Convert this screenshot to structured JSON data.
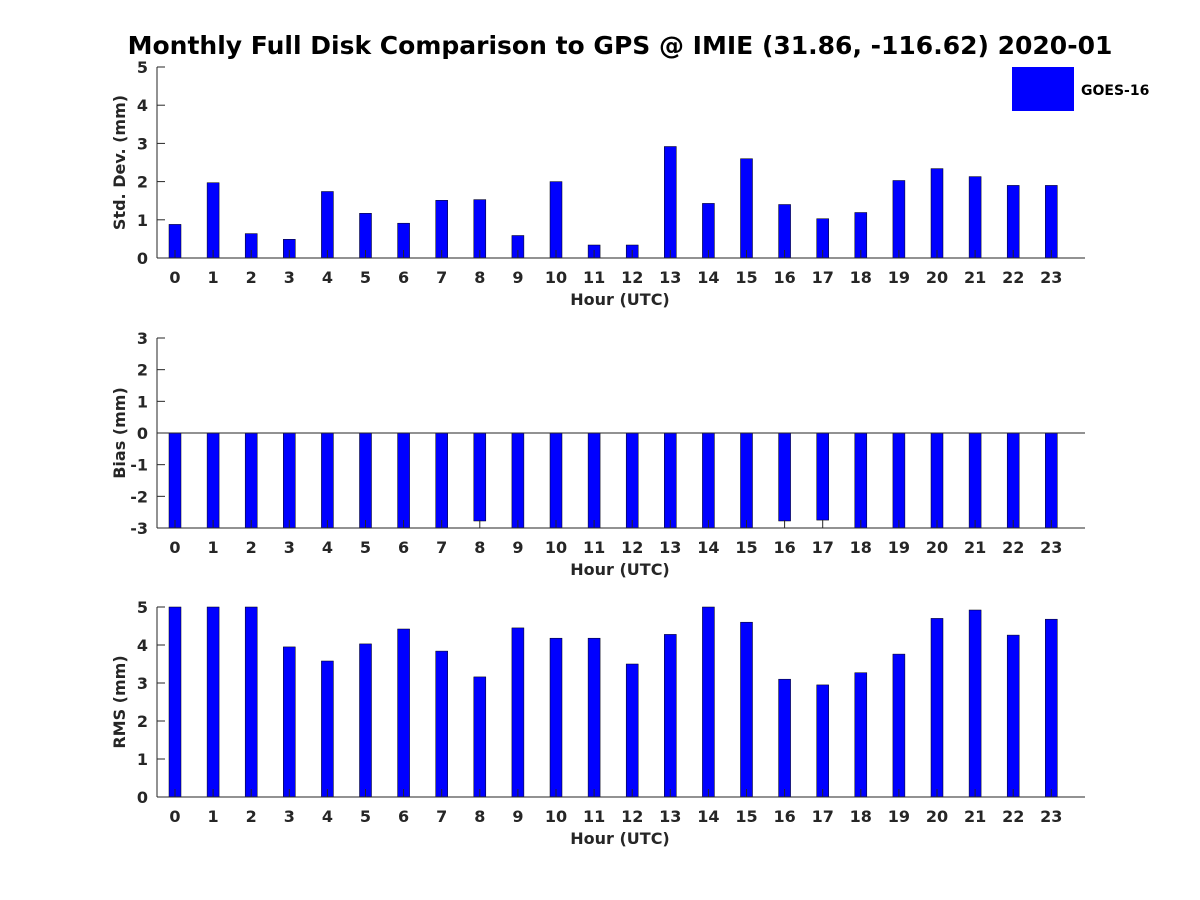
{
  "figure": {
    "title": "Monthly Full Disk Comparison to GPS @ IMIE (31.86, -116.62) 2020-01"
  },
  "legend": {
    "label": "GOES-16",
    "color": "#0000ff",
    "placement": "top-right"
  },
  "chart_data": [
    {
      "type": "bar",
      "name": "std-dev",
      "title": "",
      "xlabel": "Hour (UTC)",
      "ylabel": "Std. Dev. (mm)",
      "ylim": [
        0,
        5
      ],
      "yticks": [
        "0",
        "1",
        "2",
        "3",
        "4",
        "5"
      ],
      "categories": [
        "0",
        "1",
        "2",
        "3",
        "4",
        "5",
        "6",
        "7",
        "8",
        "9",
        "10",
        "11",
        "12",
        "13",
        "14",
        "15",
        "16",
        "17",
        "18",
        "19",
        "20",
        "21",
        "22",
        "23"
      ],
      "series": [
        {
          "name": "GOES-16",
          "color": "#0000ff",
          "values": [
            0.88,
            1.97,
            0.64,
            0.49,
            1.74,
            1.17,
            0.91,
            1.51,
            1.53,
            0.59,
            2.0,
            0.34,
            0.34,
            2.92,
            1.43,
            2.6,
            1.4,
            1.03,
            1.19,
            2.03,
            2.34,
            2.13,
            1.9,
            1.9
          ]
        }
      ],
      "grid": false
    },
    {
      "type": "bar",
      "name": "bias",
      "title": "",
      "xlabel": "Hour (UTC)",
      "ylabel": "Bias (mm)",
      "ylim": [
        -3,
        3
      ],
      "yticks": [
        "-3",
        "-2",
        "-1",
        "0",
        "1",
        "2",
        "3"
      ],
      "categories": [
        "0",
        "1",
        "2",
        "3",
        "4",
        "5",
        "6",
        "7",
        "8",
        "9",
        "10",
        "11",
        "12",
        "13",
        "14",
        "15",
        "16",
        "17",
        "18",
        "19",
        "20",
        "21",
        "22",
        "23"
      ],
      "series": [
        {
          "name": "GOES-16",
          "color": "#0000ff",
          "values": [
            -3,
            -3,
            -3,
            -3,
            -3,
            -3,
            -3,
            -3,
            -2.78,
            -3,
            -3,
            -3,
            -3,
            -3,
            -3,
            -3,
            -2.78,
            -2.75,
            -3,
            -3,
            -3,
            -3,
            -3,
            -3
          ]
        }
      ],
      "grid": false
    },
    {
      "type": "bar",
      "name": "rms",
      "title": "",
      "xlabel": "Hour (UTC)",
      "ylabel": "RMS (mm)",
      "ylim": [
        0,
        5
      ],
      "yticks": [
        "0",
        "1",
        "2",
        "3",
        "4",
        "5"
      ],
      "categories": [
        "0",
        "1",
        "2",
        "3",
        "4",
        "5",
        "6",
        "7",
        "8",
        "9",
        "10",
        "11",
        "12",
        "13",
        "14",
        "15",
        "16",
        "17",
        "18",
        "19",
        "20",
        "21",
        "22",
        "23"
      ],
      "series": [
        {
          "name": "GOES-16",
          "color": "#0000ff",
          "values": [
            5.0,
            5.0,
            5.0,
            3.95,
            3.58,
            4.03,
            4.42,
            3.84,
            3.16,
            4.45,
            4.18,
            4.18,
            3.5,
            4.28,
            5.0,
            4.6,
            3.1,
            2.95,
            3.27,
            3.76,
            4.7,
            4.92,
            4.26,
            4.68
          ]
        }
      ],
      "grid": false
    }
  ]
}
